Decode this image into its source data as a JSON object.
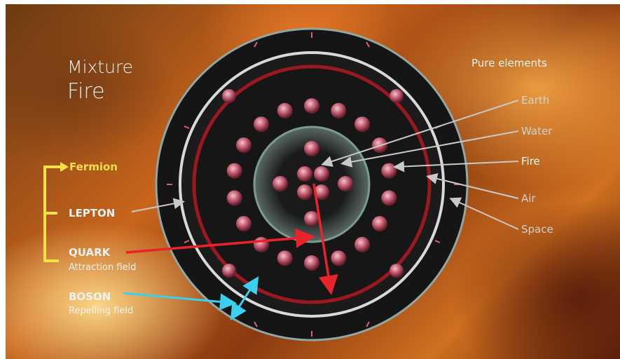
{
  "title": {
    "line1": "Mixture",
    "line2": "Fire"
  },
  "pure_elements_heading": "Pure elements",
  "elements": [
    "Earth",
    "Water",
    "Fire",
    "Air",
    "Space"
  ],
  "particles": {
    "fermion": "Fermion",
    "lepton": "LEPTON",
    "quark": "QUARK",
    "quark_desc": "Attraction field",
    "boson": "BOSON",
    "boson_desc": "Repelling field"
  },
  "colors": {
    "fermion_label": "#f5e04a",
    "bracket": "#f5e04a",
    "quark_arrow": "#e8232a",
    "boson_arrow": "#3ad0f0",
    "element_pointer": "#c9c9c9"
  }
}
